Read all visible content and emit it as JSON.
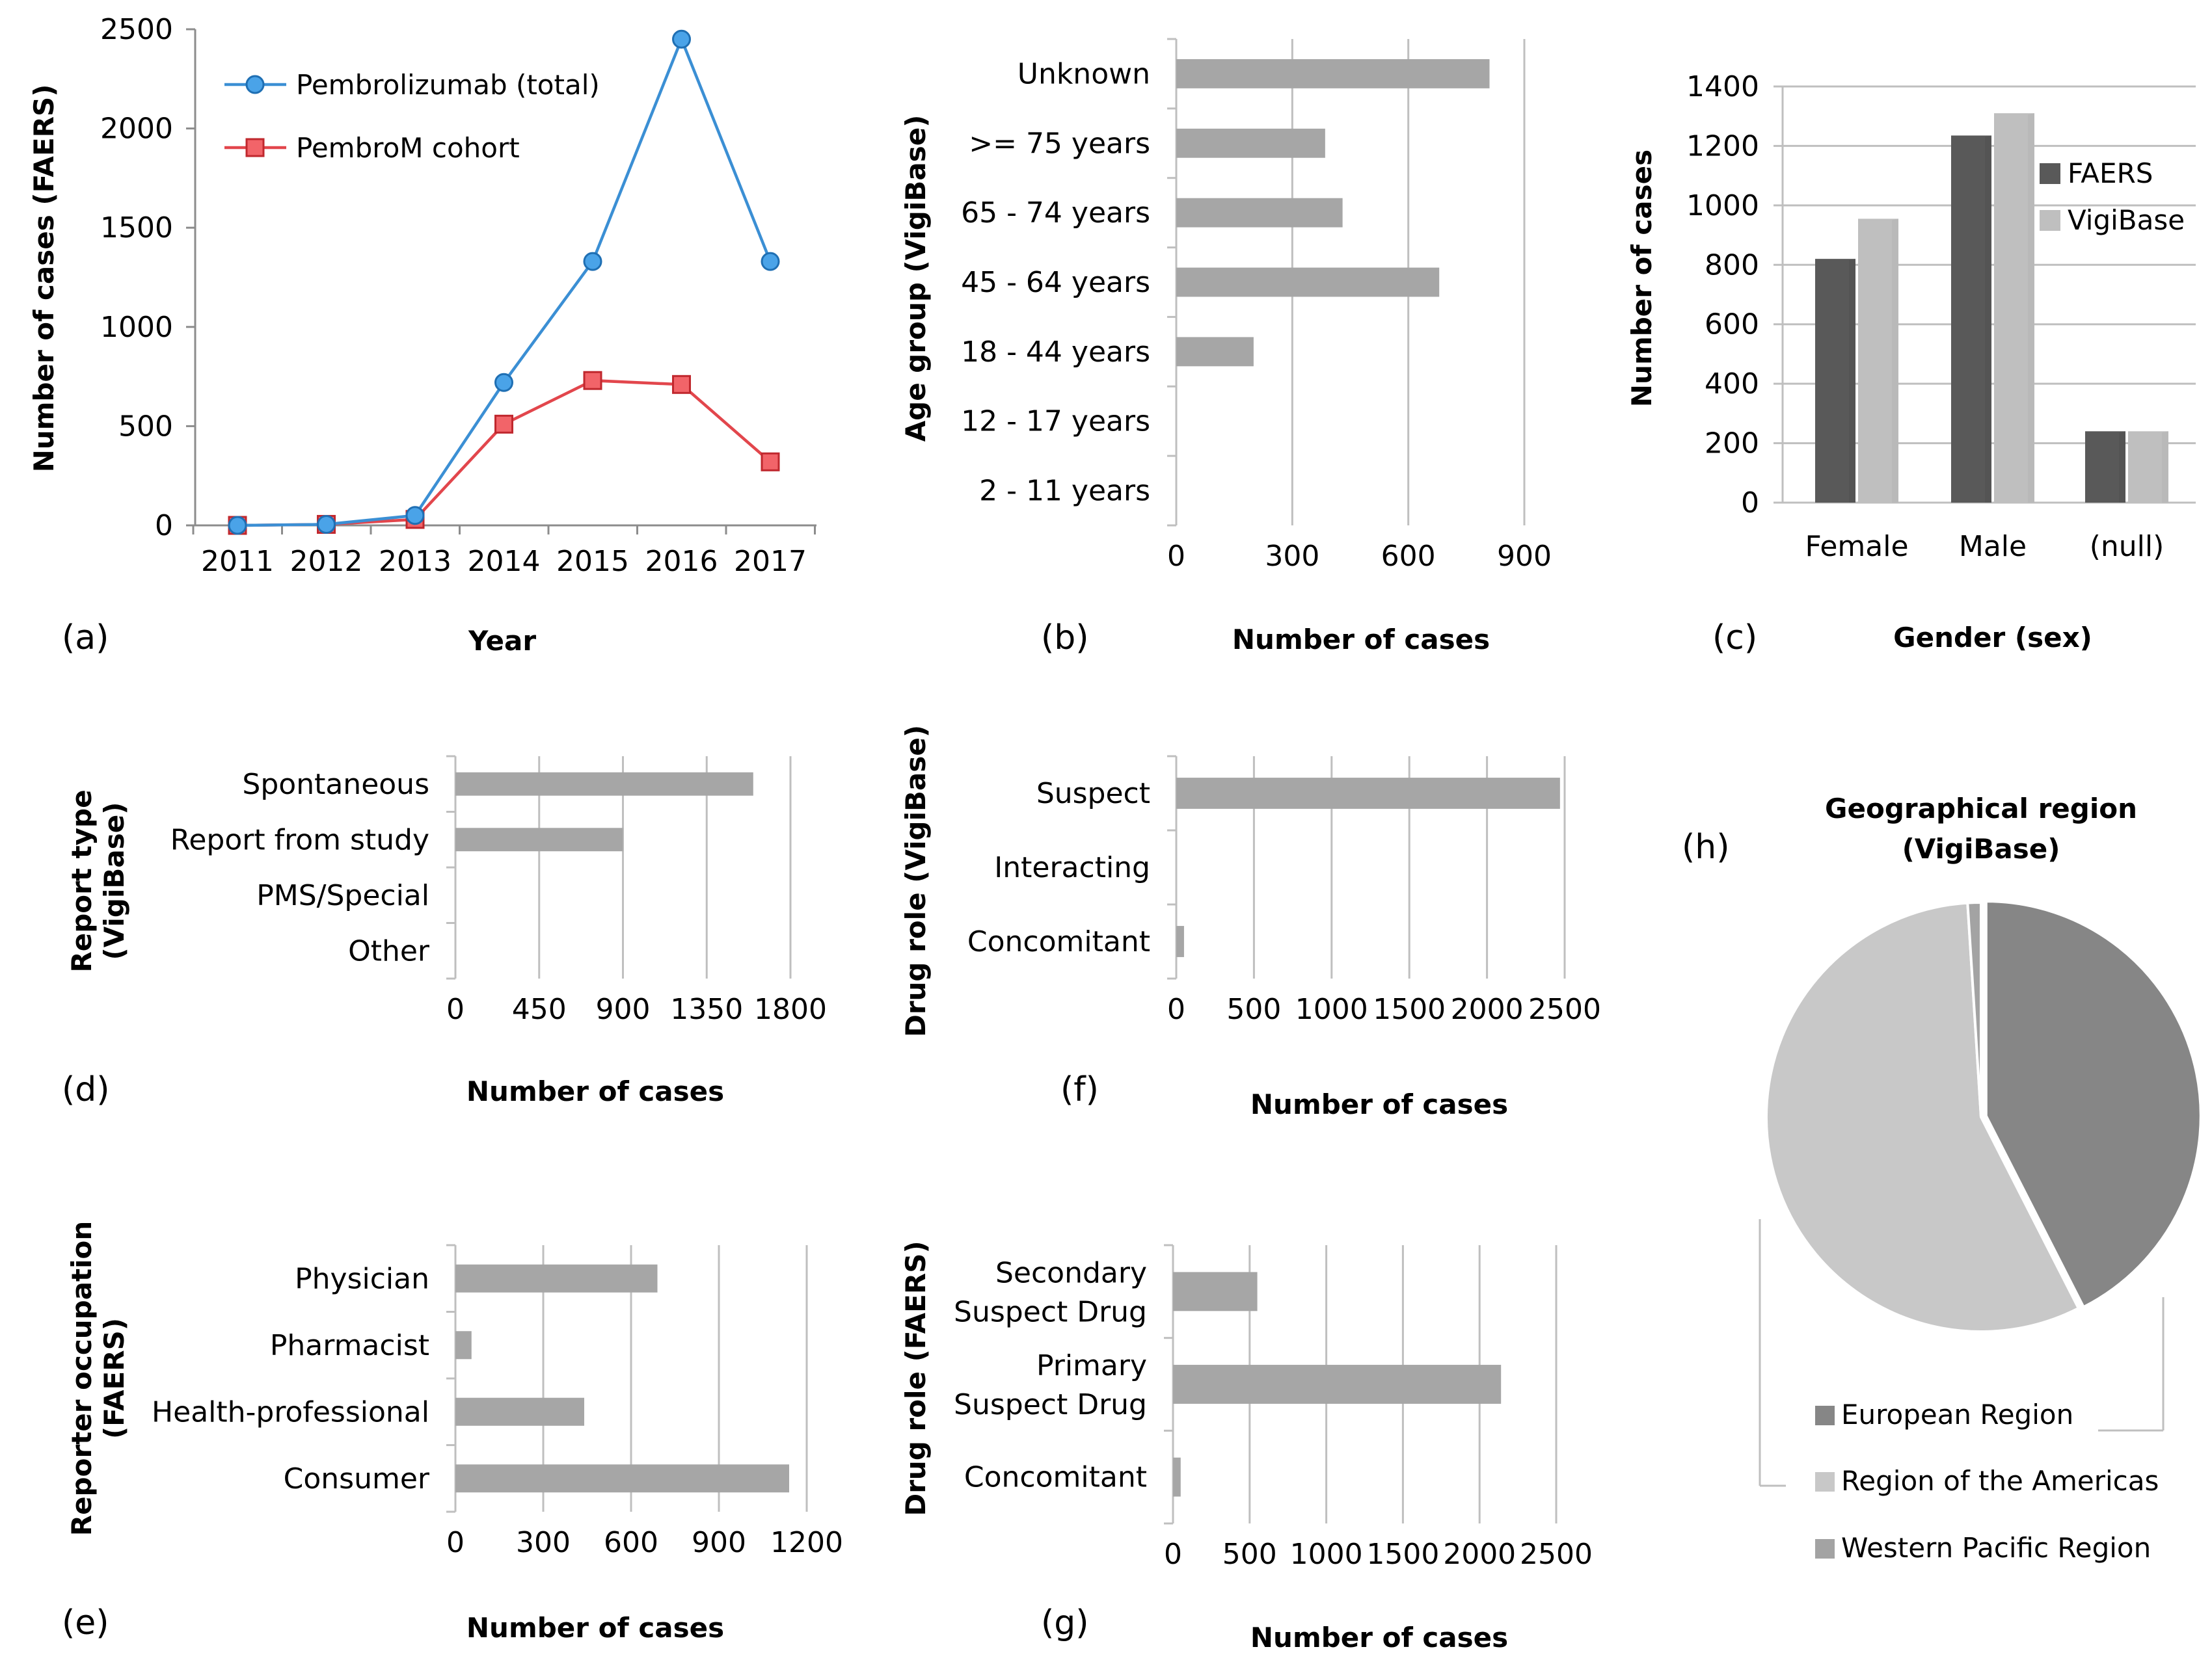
{
  "colors": {
    "blue": "#3b8fd4",
    "blue_dark": "#1f6fb3",
    "red": "#e2464c",
    "red_fill": "#f26469",
    "bar": "#a6a6a6",
    "bar_dark": "#595959",
    "bar_light": "#bfbfbf",
    "grid": "#bfbfbf",
    "pie_dark": "#868686",
    "pie_light": "#c8c8c8",
    "pie_small": "#a3a3a3"
  },
  "chart_data": [
    {
      "id": "a",
      "panel_label": "(a)",
      "type": "line",
      "xlabel": "Year",
      "ylabel": "Number of cases (FAERS)",
      "x": [
        "2011",
        "2012",
        "2013",
        "2014",
        "2015",
        "2016",
        "2017"
      ],
      "ylim": [
        0,
        2500
      ],
      "yticks": [
        0,
        500,
        1000,
        1500,
        2000,
        2500
      ],
      "legend_position": "top-left",
      "series": [
        {
          "name": "Pembrolizumab (total)",
          "values": [
            0,
            5,
            50,
            720,
            1330,
            2450,
            1330
          ],
          "marker": "circle",
          "color": "#3b8fd4"
        },
        {
          "name": "PembroM cohort",
          "values": [
            0,
            5,
            30,
            510,
            730,
            710,
            320
          ],
          "marker": "square",
          "color": "#e2464c"
        }
      ]
    },
    {
      "id": "b",
      "panel_label": "(b)",
      "type": "bar",
      "orientation": "horizontal",
      "xlabel": "Number of cases",
      "ylabel": "Age group (VigiBase)",
      "categories": [
        "Unknown",
        ">= 75 years",
        "65 - 74 years",
        "45 - 64 years",
        "18 - 44 years",
        "12 - 17 years",
        "2 - 11 years"
      ],
      "values": [
        810,
        385,
        430,
        680,
        200,
        0,
        0
      ],
      "xlim": [
        0,
        900
      ],
      "xticks": [
        0,
        300,
        600,
        900
      ]
    },
    {
      "id": "c",
      "panel_label": "(c)",
      "type": "bar",
      "orientation": "vertical",
      "xlabel": "Gender (sex)",
      "ylabel": "Number of cases",
      "categories": [
        "Female",
        "Male",
        "(null)"
      ],
      "ylim": [
        0,
        1400
      ],
      "yticks": [
        0,
        200,
        400,
        600,
        800,
        1000,
        1200,
        1400
      ],
      "legend_position": "right",
      "series": [
        {
          "name": "FAERS",
          "values": [
            820,
            1235,
            240
          ],
          "color": "#595959"
        },
        {
          "name": "VigiBase",
          "values": [
            955,
            1310,
            240
          ],
          "color": "#bfbfbf"
        }
      ]
    },
    {
      "id": "d",
      "panel_label": "(d)",
      "type": "bar",
      "orientation": "horizontal",
      "xlabel": "Number of cases",
      "ylabel": "Report type (VigiBase)",
      "categories": [
        "Spontaneous",
        "Report from study",
        "PMS/Special",
        "Other"
      ],
      "values": [
        1600,
        900,
        0,
        0
      ],
      "xlim": [
        0,
        1800
      ],
      "xticks": [
        0,
        450,
        900,
        1350,
        1800
      ]
    },
    {
      "id": "f",
      "panel_label": "(f)",
      "type": "bar",
      "orientation": "horizontal",
      "xlabel": "Number of cases",
      "ylabel": "Drug role (VigiBase)",
      "categories": [
        "Suspect",
        "Interacting",
        "Concomitant"
      ],
      "values": [
        2470,
        0,
        50
      ],
      "xlim": [
        0,
        2500
      ],
      "xticks": [
        0,
        500,
        1000,
        1500,
        2000,
        2500
      ]
    },
    {
      "id": "e",
      "panel_label": "(e)",
      "type": "bar",
      "orientation": "horizontal",
      "xlabel": "Number of cases",
      "ylabel": "Reporter occupation (FAERS)",
      "categories": [
        "Physician",
        "Pharmacist",
        "Health-professional",
        "Consumer"
      ],
      "values": [
        690,
        55,
        440,
        1140
      ],
      "xlim": [
        0,
        1200
      ],
      "xticks": [
        0,
        300,
        600,
        900,
        1200
      ]
    },
    {
      "id": "g",
      "panel_label": "(g)",
      "type": "bar",
      "orientation": "horizontal",
      "xlabel": "Number of cases",
      "ylabel": "Drug role (FAERS)",
      "categories": [
        "Secondary Suspect Drug",
        "Primary Suspect Drug",
        "Concomitant"
      ],
      "values": [
        550,
        2140,
        50
      ],
      "xlim": [
        0,
        2500
      ],
      "xticks": [
        0,
        500,
        1000,
        1500,
        2000,
        2500
      ]
    },
    {
      "id": "h",
      "panel_label": "(h)",
      "type": "pie",
      "title": "Geographical region (VigiBase)",
      "labels": [
        "European Region",
        "Region of the Americas",
        "Western Pacific Region"
      ],
      "values": [
        42.5,
        56.5,
        1.0
      ],
      "legend_position": "bottom"
    }
  ]
}
